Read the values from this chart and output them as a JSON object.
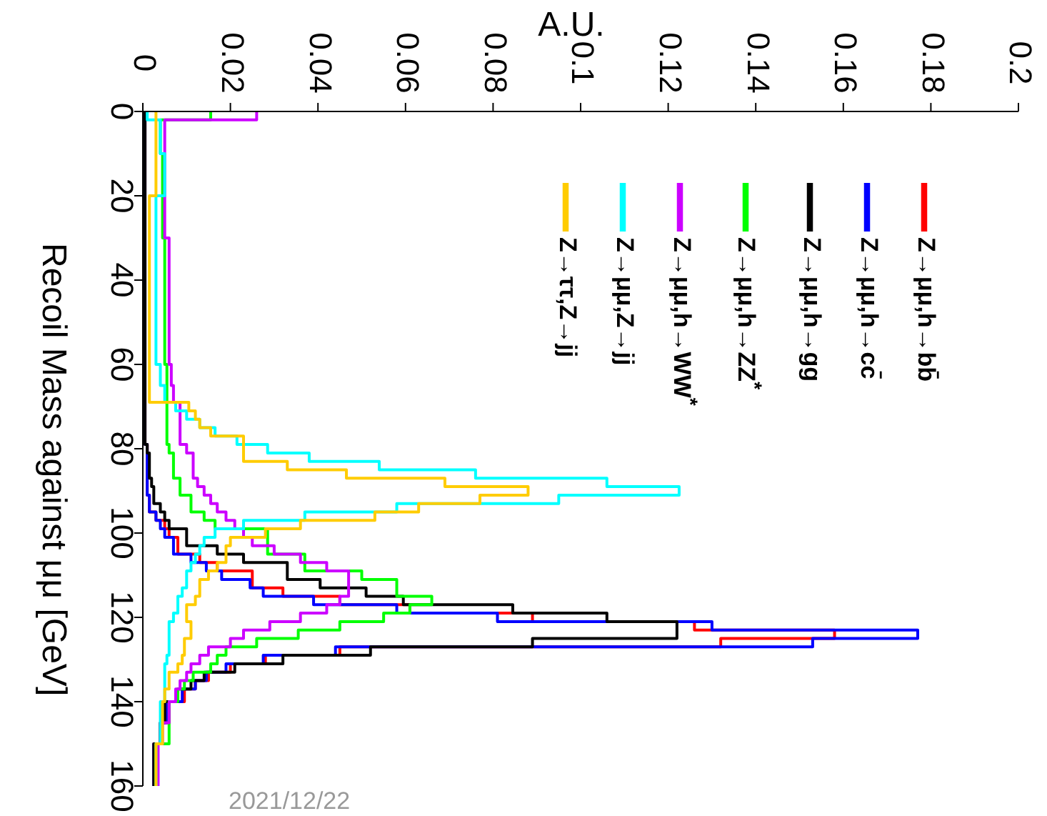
{
  "chart_data": {
    "type": "histogram",
    "orientation": "horizontal",
    "xlabel": "A.U.",
    "ylabel": "Recoil Mass against μμ [GeV]",
    "xlim": [
      0,
      0.2
    ],
    "xticks": [
      0,
      0.02,
      0.04,
      0.06,
      0.08,
      0.1,
      0.12,
      0.14,
      0.16,
      0.18,
      0.2
    ],
    "ylim": [
      160,
      0
    ],
    "yticks": [
      0,
      20,
      40,
      60,
      80,
      100,
      120,
      140,
      160
    ],
    "legend": "top right",
    "annotations": [
      "2021/12/22"
    ],
    "bins": [
      0,
      2,
      10,
      20,
      30,
      40,
      50,
      60,
      65,
      69,
      71,
      73,
      75,
      77,
      79,
      81,
      83,
      85,
      87,
      89,
      91,
      93,
      95,
      97,
      99,
      101,
      103,
      105,
      107,
      109,
      111,
      113,
      115,
      117,
      119,
      121,
      123,
      125,
      127,
      129,
      131,
      133,
      135,
      137,
      140,
      145,
      150,
      160
    ],
    "series": [
      {
        "name": "Z→μμ,h→bb̄",
        "color": "#ff0000",
        "values": [
          0.0005,
          0.0005,
          0.0005,
          0.0005,
          0.0005,
          0.0005,
          0.0005,
          0.0005,
          0.0005,
          0.0005,
          0.0005,
          0.0005,
          0.0005,
          0.0005,
          0.001,
          0.001,
          0.001,
          0.001,
          0.001,
          0.001,
          0.0015,
          0.0015,
          0.003,
          0.005,
          0.006,
          0.008,
          0.008,
          0.013,
          0.017,
          0.025,
          0.025,
          0.032,
          0.045,
          0.061,
          0.089,
          0.126,
          0.158,
          0.132,
          0.045,
          0.028,
          0.02,
          0.015,
          0.012,
          0.0095,
          0.006,
          0.004,
          0.0025
        ]
      },
      {
        "name": "Z→μμ,h→cc̄",
        "color": "#0000ff",
        "values": [
          0.0005,
          0.0005,
          0.0005,
          0.0005,
          0.0005,
          0.0005,
          0.0005,
          0.0005,
          0.0005,
          0.0005,
          0.0005,
          0.0005,
          0.0005,
          0.0005,
          0.001,
          0.001,
          0.001,
          0.001,
          0.001,
          0.001,
          0.0015,
          0.0015,
          0.003,
          0.004,
          0.005,
          0.007,
          0.007,
          0.011,
          0.0145,
          0.018,
          0.0245,
          0.0275,
          0.039,
          0.058,
          0.081,
          0.13,
          0.177,
          0.153,
          0.044,
          0.0275,
          0.019,
          0.0145,
          0.012,
          0.009,
          0.0055,
          0.004,
          0.0025
        ]
      },
      {
        "name": "Z→μμ,h→gg",
        "color": "#000000",
        "values": [
          0.0005,
          0.0005,
          0.0005,
          0.0005,
          0.0005,
          0.0005,
          0.0005,
          0.0005,
          0.0005,
          0.0005,
          0.0005,
          0.0005,
          0.0005,
          0.0005,
          0.001,
          0.0015,
          0.0015,
          0.0015,
          0.002,
          0.0025,
          0.0025,
          0.004,
          0.005,
          0.006,
          0.01,
          0.01,
          0.017,
          0.023,
          0.033,
          0.033,
          0.0405,
          0.051,
          0.0595,
          0.0845,
          0.106,
          0.122,
          0.122,
          0.089,
          0.052,
          0.032,
          0.021,
          0.014,
          0.011,
          0.008,
          0.005,
          0.004,
          0.0025
        ]
      },
      {
        "name": "Z→μμ,h→ZZ$^{*}$",
        "color": "#00ff00",
        "values": [
          0.0155,
          0.004,
          0.0045,
          0.0045,
          0.005,
          0.005,
          0.005,
          0.0055,
          0.0055,
          0.0055,
          0.0055,
          0.0055,
          0.0055,
          0.0055,
          0.006,
          0.007,
          0.007,
          0.007,
          0.0085,
          0.0085,
          0.011,
          0.011,
          0.014,
          0.0165,
          0.0285,
          0.0285,
          0.0285,
          0.037,
          0.037,
          0.05,
          0.058,
          0.058,
          0.066,
          0.061,
          0.055,
          0.045,
          0.0355,
          0.026,
          0.019,
          0.017,
          0.0155,
          0.0115,
          0.0095,
          0.008,
          0.006,
          0.006,
          0.003
        ]
      },
      {
        "name": "Z→μμ,h→WW$^{*}$",
        "color": "#cc00ff",
        "values": [
          0.026,
          0.005,
          0.005,
          0.005,
          0.006,
          0.006,
          0.006,
          0.0065,
          0.007,
          0.0085,
          0.0085,
          0.0085,
          0.0085,
          0.0085,
          0.01,
          0.0115,
          0.0115,
          0.0115,
          0.0125,
          0.014,
          0.0155,
          0.017,
          0.019,
          0.021,
          0.023,
          0.025,
          0.03,
          0.036,
          0.042,
          0.047,
          0.047,
          0.047,
          0.045,
          0.042,
          0.036,
          0.029,
          0.023,
          0.02,
          0.015,
          0.013,
          0.011,
          0.01,
          0.0085,
          0.0075,
          0.006,
          0.0045,
          0.0035
        ]
      },
      {
        "name": "Z→μμ,Z→jj",
        "color": "#00ffff",
        "values": [
          0.001,
          0.004,
          0.005,
          0.003,
          0.003,
          0.003,
          0.003,
          0.004,
          0.005,
          0.0075,
          0.01,
          0.013,
          0.0165,
          0.0215,
          0.0285,
          0.038,
          0.054,
          0.076,
          0.106,
          0.1225,
          0.095,
          0.058,
          0.037,
          0.023,
          0.0165,
          0.014,
          0.013,
          0.012,
          0.011,
          0.01,
          0.01,
          0.009,
          0.008,
          0.008,
          0.007,
          0.006,
          0.006,
          0.006,
          0.006,
          0.0055,
          0.005,
          0.005,
          0.005,
          0.005,
          0.004,
          0.004,
          0.003
        ]
      },
      {
        "name": "Z→ττ,Z→jj",
        "color": "#ffcc00",
        "values": [
          0.003,
          0.003,
          0.003,
          0.0015,
          0.0015,
          0.0015,
          0.0015,
          0.0015,
          0.0015,
          0.0105,
          0.012,
          0.013,
          0.0155,
          0.023,
          0.023,
          0.023,
          0.033,
          0.0465,
          0.069,
          0.088,
          0.077,
          0.063,
          0.053,
          0.036,
          0.028,
          0.02,
          0.019,
          0.019,
          0.017,
          0.015,
          0.013,
          0.013,
          0.012,
          0.01,
          0.01,
          0.011,
          0.011,
          0.0095,
          0.0095,
          0.009,
          0.008,
          0.006,
          0.006,
          0.005,
          0.0045,
          0.0045,
          0.003
        ]
      }
    ]
  }
}
